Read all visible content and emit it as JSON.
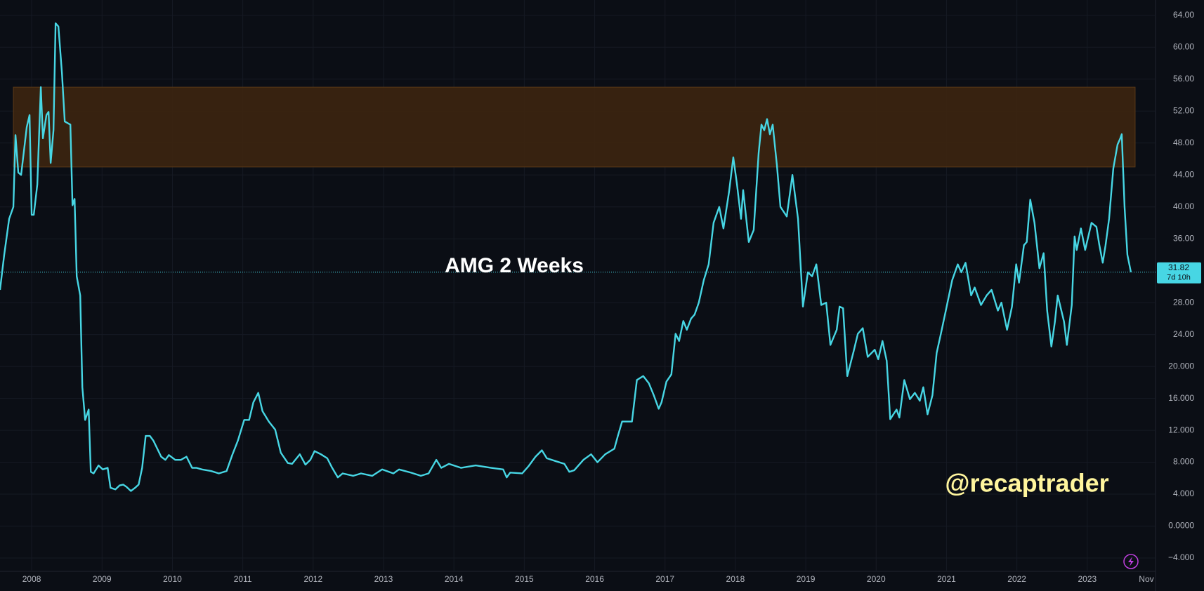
{
  "chart_data": {
    "type": "line",
    "title": "AMG 2 Weeks",
    "watermark": "@recaptrader",
    "color": "#47d6e4",
    "grid": true,
    "last_price": 31.82,
    "countdown": "7d 10h",
    "zone": {
      "x": [
        2007.74,
        2023.68
      ],
      "y": [
        45,
        55
      ],
      "color": "#3c250f"
    },
    "xlim": [
      2007.55,
      2023.97
    ],
    "ylim": [
      -5.67,
      65.92
    ],
    "xticks": [
      2008,
      2009,
      2010,
      2011,
      2012,
      2013,
      2014,
      2015,
      2016,
      2017,
      2018,
      2019,
      2020,
      2021,
      2022,
      2023,
      {
        "value": 2023.84,
        "label": "Nov"
      }
    ],
    "yticks": [
      {
        "value": 64,
        "label": "64.00"
      },
      {
        "value": 60,
        "label": "60.00"
      },
      {
        "value": 56,
        "label": "56.00"
      },
      {
        "value": 52,
        "label": "52.00"
      },
      {
        "value": 48,
        "label": "48.00"
      },
      {
        "value": 44,
        "label": "44.00"
      },
      {
        "value": 40,
        "label": "40.00"
      },
      {
        "value": 36,
        "label": "36.00"
      },
      {
        "value": 28,
        "label": "28.00"
      },
      {
        "value": 24,
        "label": "24.00"
      },
      {
        "value": 20,
        "label": "20.000"
      },
      {
        "value": 16,
        "label": "16.000"
      },
      {
        "value": 12,
        "label": "12.000"
      },
      {
        "value": 8,
        "label": "8.000"
      },
      {
        "value": 4,
        "label": "4.000"
      },
      {
        "value": 0,
        "label": "0.0000"
      },
      {
        "value": -4,
        "label": "−4.000"
      }
    ],
    "x": [
      2007.55,
      2007.61,
      2007.68,
      2007.74,
      2007.77,
      2007.81,
      2007.85,
      2007.93,
      2007.97,
      2008.0,
      2008.03,
      2008.08,
      2008.13,
      2008.16,
      2008.21,
      2008.24,
      2008.27,
      2008.31,
      2008.34,
      2008.38,
      2008.43,
      2008.47,
      2008.51,
      2008.55,
      2008.58,
      2008.61,
      2008.64,
      2008.69,
      2008.72,
      2008.76,
      2008.81,
      2008.84,
      2008.88,
      2008.95,
      2009.01,
      2009.08,
      2009.12,
      2009.19,
      2009.25,
      2009.3,
      2009.35,
      2009.41,
      2009.47,
      2009.52,
      2009.57,
      2009.62,
      2009.68,
      2009.73,
      2009.84,
      2009.9,
      2009.95,
      2010.04,
      2010.12,
      2010.2,
      2010.28,
      2010.34,
      2010.42,
      2010.55,
      2010.66,
      2010.77,
      2010.85,
      2010.93,
      2011.02,
      2011.09,
      2011.15,
      2011.22,
      2011.28,
      2011.37,
      2011.46,
      2011.54,
      2011.64,
      2011.7,
      2011.81,
      2011.89,
      2011.96,
      2012.02,
      2012.11,
      2012.2,
      2012.27,
      2012.35,
      2012.42,
      2012.57,
      2012.68,
      2012.84,
      2012.98,
      2013.14,
      2013.22,
      2013.39,
      2013.53,
      2013.64,
      2013.75,
      2013.82,
      2013.93,
      2014.1,
      2014.31,
      2014.53,
      2014.7,
      2014.75,
      2014.8,
      2014.97,
      2015.06,
      2015.16,
      2015.25,
      2015.32,
      2015.46,
      2015.57,
      2015.64,
      2015.71,
      2015.84,
      2015.95,
      2016.04,
      2016.15,
      2016.28,
      2016.33,
      2016.39,
      2016.53,
      2016.6,
      2016.69,
      2016.77,
      2016.84,
      2016.91,
      2016.95,
      2017.02,
      2017.09,
      2017.15,
      2017.2,
      2017.26,
      2017.31,
      2017.37,
      2017.42,
      2017.48,
      2017.55,
      2017.62,
      2017.69,
      2017.77,
      2017.83,
      2017.91,
      2017.97,
      2018.02,
      2018.08,
      2018.11,
      2018.19,
      2018.26,
      2018.33,
      2018.37,
      2018.41,
      2018.45,
      2018.49,
      2018.53,
      2018.59,
      2018.64,
      2018.73,
      2018.81,
      2018.89,
      2018.96,
      2019.03,
      2019.09,
      2019.15,
      2019.22,
      2019.29,
      2019.35,
      2019.44,
      2019.48,
      2019.53,
      2019.59,
      2019.68,
      2019.74,
      2019.81,
      2019.88,
      2019.98,
      2020.03,
      2020.09,
      2020.15,
      2020.2,
      2020.29,
      2020.33,
      2020.4,
      2020.48,
      2020.55,
      2020.62,
      2020.67,
      2020.73,
      2020.8,
      2020.86,
      2020.92,
      2020.99,
      2021.08,
      2021.16,
      2021.21,
      2021.27,
      2021.35,
      2021.4,
      2021.49,
      2021.57,
      2021.64,
      2021.73,
      2021.78,
      2021.86,
      2021.93,
      2021.99,
      2022.03,
      2022.1,
      2022.14,
      2022.19,
      2022.25,
      2022.32,
      2022.38,
      2022.43,
      2022.49,
      2022.54,
      2022.58,
      2022.67,
      2022.71,
      2022.78,
      2022.82,
      2022.85,
      2022.91,
      2022.97,
      2023.06,
      2023.13,
      2023.17,
      2023.22,
      2023.26,
      2023.31,
      2023.37,
      2023.43,
      2023.47,
      2023.49,
      2023.53,
      2023.57,
      2023.62
    ],
    "values": [
      29.6,
      34,
      38.5,
      40,
      49,
      44.3,
      44,
      50,
      51.5,
      39,
      39,
      42.8,
      55,
      48.6,
      51.5,
      51.9,
      45.5,
      49.6,
      63,
      62.6,
      56.8,
      50.7,
      50.5,
      50.3,
      40.2,
      41,
      31.3,
      28.9,
      17.4,
      13.3,
      14.6,
      6.8,
      6.6,
      7.6,
      7.1,
      7.3,
      4.8,
      4.6,
      5.1,
      5.2,
      4.9,
      4.4,
      4.8,
      5.2,
      7.3,
      11.3,
      11.3,
      10.7,
      8.7,
      8.3,
      8.9,
      8.3,
      8.3,
      8.7,
      7.3,
      7.3,
      7.1,
      6.9,
      6.6,
      6.9,
      8.9,
      10.7,
      13.3,
      13.3,
      15.5,
      16.7,
      14.4,
      13.1,
      12.1,
      9.2,
      7.9,
      7.8,
      9,
      7.7,
      8.3,
      9.4,
      9,
      8.5,
      7.3,
      6.1,
      6.6,
      6.3,
      6.6,
      6.3,
      7.1,
      6.6,
      7.1,
      6.7,
      6.3,
      6.6,
      8.3,
      7.3,
      7.8,
      7.3,
      7.6,
      7.3,
      7.1,
      6.1,
      6.7,
      6.6,
      7.5,
      8.7,
      9.5,
      8.5,
      8.1,
      7.8,
      6.8,
      7,
      8.3,
      9,
      8,
      9,
      9.7,
      11.3,
      13.1,
      13.1,
      18.3,
      18.8,
      17.9,
      16.4,
      14.7,
      15.5,
      18.1,
      19,
      24.1,
      23.2,
      25.7,
      24.6,
      26,
      26.5,
      28,
      30.8,
      32.8,
      38,
      40,
      37.3,
      41.9,
      46.2,
      43,
      38.5,
      42.1,
      35.6,
      37.1,
      46.7,
      50.3,
      49.6,
      51,
      49.1,
      50.3,
      45.2,
      40,
      38.8,
      44,
      38.5,
      27.5,
      31.8,
      31.3,
      32.8,
      27.7,
      28,
      22.7,
      24.6,
      27.5,
      27.3,
      18.8,
      21.9,
      24.1,
      24.8,
      21.2,
      22.1,
      20.9,
      23.2,
      20.7,
      13.4,
      14.6,
      13.6,
      18.3,
      15.9,
      16.7,
      15.7,
      17.4,
      14,
      16.4,
      21.7,
      24.1,
      27,
      30.8,
      32.8,
      31.8,
      33,
      28.9,
      29.9,
      27.7,
      28.9,
      29.6,
      27,
      28,
      24.6,
      27.5,
      32.8,
      30.5,
      35.2,
      35.6,
      40.9,
      38,
      32.3,
      34.2,
      27,
      22.5,
      25.6,
      28.9,
      25.6,
      22.7,
      27.7,
      36.3,
      34.6,
      37.3,
      34.6,
      38,
      37.5,
      35.3,
      33,
      35.2,
      38.5,
      44.8,
      47.8,
      48.6,
      49.1,
      40,
      34,
      31.82
    ]
  }
}
